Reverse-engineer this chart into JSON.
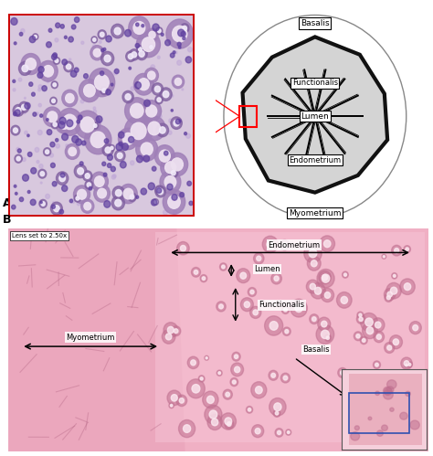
{
  "panel_A_label": "A",
  "panel_B_label": "B",
  "diagram_labels": {
    "basalis": "Basalis",
    "functionalis": "Functionalis",
    "lumen": "Lumen",
    "endometrium": "Endometrium",
    "myometrium": "Myometrium"
  },
  "micro_labels": {
    "endometrium": "Endometrium",
    "lumen": "Lumen",
    "functionalis": "Functionalis",
    "myometrium": "Myometrium",
    "basalis": "Basalis",
    "lens": "Lens set to 2.50x"
  },
  "bg_color": "#ffffff",
  "hist_bg": "#d8c8e0",
  "micro_bg": "#f0b8cc"
}
